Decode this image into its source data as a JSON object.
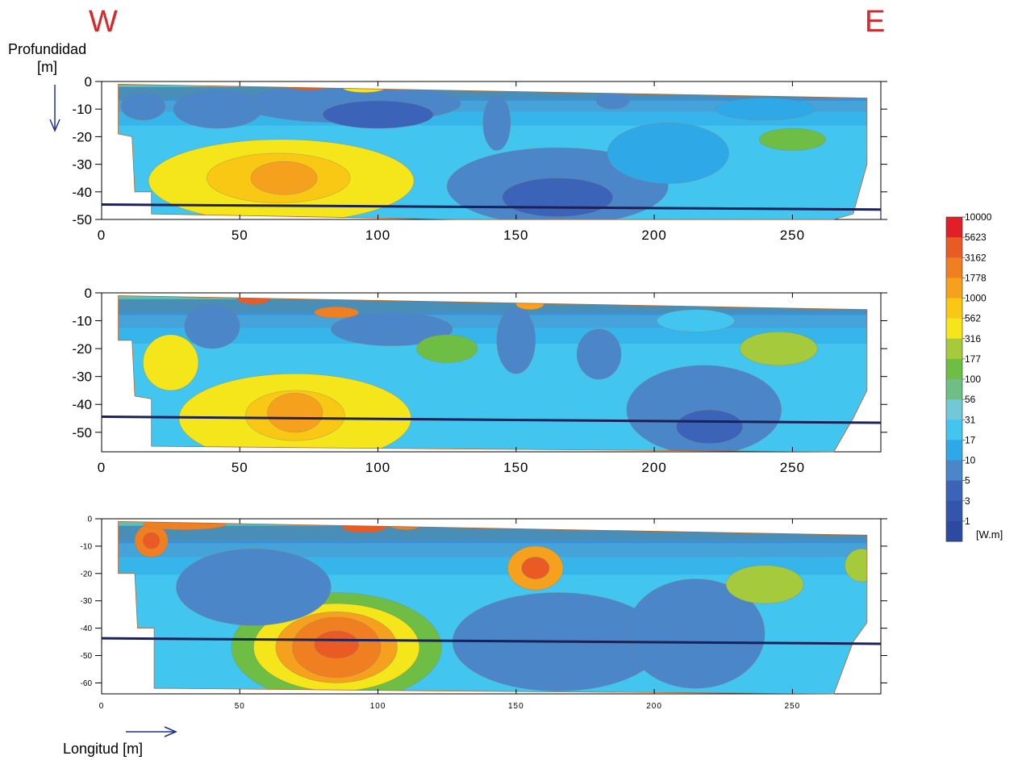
{
  "direction_labels": {
    "west": "W",
    "east": "E"
  },
  "depth_axis_title": [
    "Profundidad",
    "[m]"
  ],
  "length_axis_title": "Longitud [m]",
  "unit_label": "[W.m]",
  "chart_data": [
    {
      "type": "heatmap",
      "title": "",
      "xlim": [
        0,
        282
      ],
      "ylim": [
        -50,
        0
      ],
      "xticks": [
        0,
        50,
        100,
        150,
        200,
        250
      ],
      "yticks": [
        0,
        -10,
        -20,
        -30,
        -40,
        -50
      ],
      "ytick_labels": [
        "0",
        "-10",
        "-20",
        "-30",
        "-40",
        "-50"
      ],
      "section_outline": [
        [
          6,
          -1
        ],
        [
          7,
          -1
        ],
        [
          277,
          -6
        ],
        [
          277,
          -30
        ],
        [
          272,
          -48
        ],
        [
          265,
          -50
        ],
        [
          128,
          -50
        ],
        [
          18,
          -48
        ],
        [
          18,
          -40
        ],
        [
          12,
          -40
        ],
        [
          11,
          -20
        ],
        [
          6,
          -19
        ]
      ],
      "reference_line": [
        [
          0,
          -44.6
        ],
        [
          282,
          -46.4
        ]
      ],
      "anomalies": [
        {
          "x": 65,
          "y": -36,
          "rx": 48,
          "ry": 15,
          "value": 316
        },
        {
          "x": 64,
          "y": -35,
          "rx": 26,
          "ry": 9,
          "value": 562
        },
        {
          "x": 66,
          "y": -35,
          "rx": 12,
          "ry": 6,
          "value": 1000
        },
        {
          "x": 90,
          "y": -8,
          "rx": 40,
          "ry": 7,
          "value": 5
        },
        {
          "x": 100,
          "y": -12,
          "rx": 20,
          "ry": 5,
          "value": 3
        },
        {
          "x": 42,
          "y": -10,
          "rx": 16,
          "ry": 7,
          "value": 5
        },
        {
          "x": 15,
          "y": -9,
          "rx": 8,
          "ry": 5,
          "value": 5
        },
        {
          "x": 165,
          "y": -38,
          "rx": 40,
          "ry": 14,
          "value": 5
        },
        {
          "x": 165,
          "y": -42,
          "rx": 20,
          "ry": 7,
          "value": 3
        },
        {
          "x": 205,
          "y": -26,
          "rx": 22,
          "ry": 11,
          "value": 10
        },
        {
          "x": 143,
          "y": -15,
          "rx": 5,
          "ry": 10,
          "value": 5
        },
        {
          "x": 75,
          "y": -1,
          "rx": 10,
          "ry": 2,
          "value": 3162
        },
        {
          "x": 95,
          "y": -2,
          "rx": 8,
          "ry": 2,
          "value": 316
        },
        {
          "x": 250,
          "y": -21,
          "rx": 12,
          "ry": 4,
          "value": 100
        },
        {
          "x": 240,
          "y": -10,
          "rx": 18,
          "ry": 4,
          "value": 10
        },
        {
          "x": 185,
          "y": -7,
          "rx": 6,
          "ry": 3,
          "value": 5
        }
      ]
    },
    {
      "type": "heatmap",
      "title": "",
      "xlim": [
        0,
        282
      ],
      "ylim": [
        -57,
        0
      ],
      "xticks": [
        0,
        50,
        100,
        150,
        200,
        250
      ],
      "yticks": [
        0,
        -10,
        -20,
        -30,
        -40,
        -50
      ],
      "ytick_labels": [
        "0",
        "-10",
        "-20",
        "-30",
        "-40",
        "-50"
      ],
      "section_outline": [
        [
          6,
          -1
        ],
        [
          7,
          -1
        ],
        [
          277,
          -6
        ],
        [
          277,
          -35
        ],
        [
          272,
          -45
        ],
        [
          265,
          -57
        ],
        [
          128,
          -56
        ],
        [
          18,
          -55
        ],
        [
          18,
          -38
        ],
        [
          12,
          -37
        ],
        [
          11,
          -17
        ],
        [
          6,
          -17
        ]
      ],
      "reference_line": [
        [
          0,
          -44.4
        ],
        [
          282,
          -46.6
        ]
      ],
      "anomalies": [
        {
          "x": 70,
          "y": -45,
          "rx": 42,
          "ry": 16,
          "value": 316
        },
        {
          "x": 70,
          "y": -44,
          "rx": 18,
          "ry": 9,
          "value": 562
        },
        {
          "x": 70,
          "y": -43,
          "rx": 10,
          "ry": 7,
          "value": 1000
        },
        {
          "x": 25,
          "y": -25,
          "rx": 10,
          "ry": 10,
          "value": 316
        },
        {
          "x": 105,
          "y": -13,
          "rx": 22,
          "ry": 6,
          "value": 5
        },
        {
          "x": 40,
          "y": -12,
          "rx": 10,
          "ry": 8,
          "value": 5
        },
        {
          "x": 150,
          "y": -17,
          "rx": 7,
          "ry": 12,
          "value": 5
        },
        {
          "x": 180,
          "y": -22,
          "rx": 8,
          "ry": 9,
          "value": 5
        },
        {
          "x": 218,
          "y": -42,
          "rx": 28,
          "ry": 16,
          "value": 5
        },
        {
          "x": 220,
          "y": -48,
          "rx": 12,
          "ry": 6,
          "value": 3
        },
        {
          "x": 55,
          "y": -2,
          "rx": 6,
          "ry": 2,
          "value": 3162
        },
        {
          "x": 85,
          "y": -7,
          "rx": 8,
          "ry": 2,
          "value": 1778
        },
        {
          "x": 155,
          "y": -4,
          "rx": 5,
          "ry": 2,
          "value": 1000
        },
        {
          "x": 245,
          "y": -20,
          "rx": 14,
          "ry": 6,
          "value": 177
        },
        {
          "x": 125,
          "y": -20,
          "rx": 11,
          "ry": 5,
          "value": 100
        },
        {
          "x": 215,
          "y": -10,
          "rx": 14,
          "ry": 4,
          "value": 17
        }
      ]
    },
    {
      "type": "heatmap",
      "title": "",
      "xlim": [
        0,
        282
      ],
      "ylim": [
        -64,
        0
      ],
      "xticks": [
        0,
        50,
        100,
        150,
        200,
        250
      ],
      "yticks": [
        0,
        -10,
        -20,
        -30,
        -40,
        -50,
        -60
      ],
      "ytick_labels": [
        "0",
        "-10",
        "-20",
        "-30",
        "-40",
        "-50",
        "-60"
      ],
      "section_outline": [
        [
          6,
          -1
        ],
        [
          7,
          -1
        ],
        [
          277,
          -6
        ],
        [
          277,
          -38
        ],
        [
          272,
          -45
        ],
        [
          265,
          -64
        ],
        [
          128,
          -63
        ],
        [
          25,
          -62
        ],
        [
          19,
          -62
        ],
        [
          19,
          -40
        ],
        [
          13,
          -40
        ],
        [
          12,
          -20
        ],
        [
          6,
          -20
        ]
      ],
      "reference_line": [
        [
          0,
          -43.7
        ],
        [
          282,
          -45.7
        ]
      ],
      "anomalies": [
        {
          "x": 85,
          "y": -47,
          "rx": 38,
          "ry": 20,
          "value": 100
        },
        {
          "x": 85,
          "y": -47,
          "rx": 30,
          "ry": 16,
          "value": 316
        },
        {
          "x": 85,
          "y": -47,
          "rx": 22,
          "ry": 13,
          "value": 1000
        },
        {
          "x": 85,
          "y": -47,
          "rx": 16,
          "ry": 11,
          "value": 1778
        },
        {
          "x": 85,
          "y": -46,
          "rx": 8,
          "ry": 5,
          "value": 3162
        },
        {
          "x": 18,
          "y": -8,
          "rx": 6,
          "ry": 6,
          "value": 1778
        },
        {
          "x": 18,
          "y": -8,
          "rx": 3,
          "ry": 3,
          "value": 3162
        },
        {
          "x": 157,
          "y": -18,
          "rx": 10,
          "ry": 8,
          "value": 1000
        },
        {
          "x": 157,
          "y": -18,
          "rx": 5,
          "ry": 4,
          "value": 3162
        },
        {
          "x": 55,
          "y": -25,
          "rx": 28,
          "ry": 14,
          "value": 5
        },
        {
          "x": 165,
          "y": -45,
          "rx": 38,
          "ry": 18,
          "value": 5
        },
        {
          "x": 215,
          "y": -42,
          "rx": 25,
          "ry": 20,
          "value": 5
        },
        {
          "x": 240,
          "y": -24,
          "rx": 14,
          "ry": 7,
          "value": 177
        },
        {
          "x": 95,
          "y": -3,
          "rx": 8,
          "ry": 2,
          "value": 3162
        },
        {
          "x": 110,
          "y": -2,
          "rx": 6,
          "ry": 2,
          "value": 1778
        },
        {
          "x": 30,
          "y": -2,
          "rx": 15,
          "ry": 2,
          "value": 1778
        },
        {
          "x": 275,
          "y": -17,
          "rx": 6,
          "ry": 6,
          "value": 177
        }
      ]
    }
  ],
  "colorbar": {
    "colors": [
      "#2c4ba0",
      "#3355ad",
      "#3b64b8",
      "#4a86c8",
      "#2ea8e6",
      "#42c5ef",
      "#71c8d6",
      "#6fbf84",
      "#6ebd45",
      "#a5cb3c",
      "#f4e61a",
      "#f9c814",
      "#f6a11e",
      "#f07f22",
      "#ea5a24",
      "#e21f26"
    ],
    "bands": [
      {
        "label": "1",
        "color": "#3355ad"
      },
      {
        "label": "3",
        "color": "#3b64b8"
      },
      {
        "label": "5",
        "color": "#4a86c8"
      },
      {
        "label": "10",
        "color": "#2ea8e6"
      },
      {
        "label": "17",
        "color": "#42c5ef"
      },
      {
        "label": "31",
        "color": "#71c8d6"
      },
      {
        "label": "56",
        "color": "#6fbf84"
      },
      {
        "label": "100",
        "color": "#6ebd45"
      },
      {
        "label": "177",
        "color": "#a5cb3c"
      },
      {
        "label": "316",
        "color": "#f4e61a"
      },
      {
        "label": "562",
        "color": "#f9c814"
      },
      {
        "label": "1000",
        "color": "#f6a11e"
      },
      {
        "label": "1778",
        "color": "#f07f22"
      },
      {
        "label": "3162",
        "color": "#ea5a24"
      },
      {
        "label": "5623",
        "color": "#e21f26"
      },
      {
        "label": "10000",
        "color": "#e21f26"
      }
    ]
  }
}
